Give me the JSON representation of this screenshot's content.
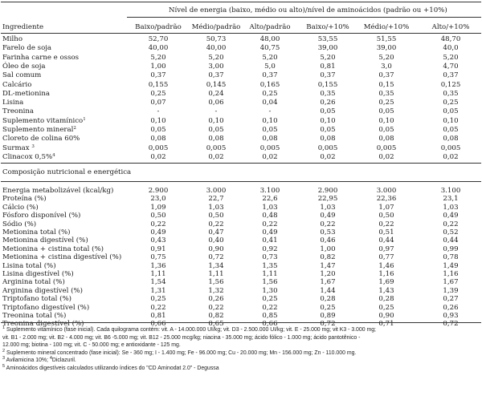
{
  "header": {
    "group_title": "Nível de energia (baixo, médio ou alto)/nível de aminoácidos (padrão ou +10%)",
    "first_col": "Ingrediente",
    "columns": [
      "Baixo/padrão",
      "Médio/padrão",
      "Alto/padrão",
      "Baixo/+10%",
      "Médio/+10%",
      "Alto/+10%"
    ]
  },
  "ingredients": [
    {
      "name": "Milho",
      "sup": "",
      "values": [
        "52,70",
        "50,73",
        "48,00",
        "53,55",
        "51,55",
        "48,70"
      ]
    },
    {
      "name": "Farelo de soja",
      "sup": "",
      "values": [
        "40,00",
        "40,00",
        "40,75",
        "39,00",
        "39,00",
        "40,0"
      ]
    },
    {
      "name": "Farinha carne e ossos",
      "sup": "",
      "values": [
        "5,20",
        "5,20",
        "5,20",
        "5,20",
        "5,20",
        "5,20"
      ]
    },
    {
      "name": "Óleo de soja",
      "sup": "",
      "values": [
        "1,00",
        "3,00",
        "5,0",
        "0,81",
        "3,0",
        "4,70"
      ]
    },
    {
      "name": "Sal comum",
      "sup": "",
      "values": [
        "0,37",
        "0,37",
        "0,37",
        "0,37",
        "0,37",
        "0,37"
      ]
    },
    {
      "name": "Calcário",
      "sup": "",
      "values": [
        "0,155",
        "0,145",
        "0,165",
        "0,155",
        "0,15",
        "0,125"
      ]
    },
    {
      "name": "DL-metionina",
      "sup": "",
      "values": [
        "0,25",
        "0,24",
        "0,25",
        "0,35",
        "0,35",
        "0,35"
      ]
    },
    {
      "name": "Lisina",
      "sup": "",
      "values": [
        "0,07",
        "0,06",
        "0,04",
        "0,26",
        "0,25",
        "0,25"
      ]
    },
    {
      "name": "Treonina",
      "sup": "",
      "values": [
        "-",
        "-",
        "-",
        "0,05",
        "0,05",
        "0,05"
      ]
    },
    {
      "name": "Suplemento vitamínico",
      "sup": "1",
      "values": [
        "0,10",
        "0,10",
        "0,10",
        "0,10",
        "0,10",
        "0,10"
      ]
    },
    {
      "name": "Suplemento mineral",
      "sup": "2",
      "values": [
        "0,05",
        "0,05",
        "0,05",
        "0,05",
        "0,05",
        "0,05"
      ]
    },
    {
      "name": "Cloreto de colina 60%",
      "sup": "",
      "values": [
        "0,08",
        "0,08",
        "0,08",
        "0,08",
        "0,08",
        "0,08"
      ]
    },
    {
      "name": "Surmax ",
      "sup": "3",
      "values": [
        "0,005",
        "0,005",
        "0,005",
        "0,005",
        "0,005",
        "0,005"
      ]
    },
    {
      "name": "Clinacox 0,5%",
      "sup": "4",
      "values": [
        "0,02",
        "0,02",
        "0,02",
        "0,02",
        "0,02",
        "0,02"
      ]
    }
  ],
  "composition_title": "Composição nutricional e energética",
  "composition": [
    {
      "name": "Energia metabolizável (kcal/kg)",
      "values": [
        "2.900",
        "3.000",
        "3.100",
        "2.900",
        "3.000",
        "3.100"
      ]
    },
    {
      "name": "Proteína (%)",
      "values": [
        "23,0",
        "22,7",
        "22,6",
        "22,95",
        "22,36",
        "23,1"
      ]
    },
    {
      "name": "Cálcio (%)",
      "values": [
        "1,09",
        "1,03",
        "1,03",
        "1,03",
        "1,07",
        "1,03"
      ]
    },
    {
      "name": "Fósforo disponível (%)",
      "values": [
        "0,50",
        "0,50",
        "0,48",
        "0,49",
        "0,50",
        "0,49"
      ]
    },
    {
      "name": "Sódio (%)",
      "values": [
        "0,22",
        "0,22",
        "0,22",
        "0,22",
        "0,22",
        "0,22"
      ]
    },
    {
      "name": "Metionina total (%)",
      "values": [
        "0,49",
        "0,47",
        "0,49",
        "0,53",
        "0,51",
        "0,52"
      ]
    },
    {
      "name": "Metionina digestível (%)",
      "values": [
        "0,43",
        "0,40",
        "0,41",
        "0,46",
        "0,44",
        "0,44"
      ]
    },
    {
      "name": "Metionina + cistina total (%)",
      "values": [
        "0,91",
        "0,90",
        "0,92",
        "1,00",
        "0,97",
        "0,99"
      ]
    },
    {
      "name": "Metionina + cistina digestível (%)",
      "values": [
        "0,75",
        "0,72",
        "0,73",
        "0,82",
        "0,77",
        "0,78"
      ]
    },
    {
      "name": "Lisina total (%)",
      "values": [
        "1,36",
        "1,34",
        "1,35",
        "1,47",
        "1,46",
        "1,49"
      ]
    },
    {
      "name": "Lisina digestível (%)",
      "values": [
        "1,11",
        "1,11",
        "1,11",
        "1,20",
        "1,16",
        "1,16"
      ]
    },
    {
      "name": "Arginina total (%)",
      "values": [
        "1,54",
        "1,56",
        "1,56",
        "1,67",
        "1,69",
        "1,67"
      ]
    },
    {
      "name": "Arginina digestível (%)",
      "values": [
        "1,31",
        "1,32",
        "1,30",
        "1,44",
        "1,43",
        "1,39"
      ]
    },
    {
      "name": "Triptofano total (%)",
      "values": [
        "0,25",
        "0,26",
        "0,25",
        "0,28",
        "0,28",
        "0,27"
      ]
    },
    {
      "name": "Triptofano digestível (%)",
      "values": [
        "0,22",
        "0,22",
        "0,22",
        "0,25",
        "0,25",
        "0,26"
      ]
    },
    {
      "name": "Treonina total (%)",
      "values": [
        "0,81",
        "0,82",
        "0,85",
        "0,89",
        "0,90",
        "0,93"
      ]
    },
    {
      "name": "Treonina digestível (%)",
      "values": [
        "0,66",
        "0,65",
        "0,66",
        "0,72",
        "0,71",
        "0,72"
      ]
    }
  ],
  "footnotes": [
    {
      "n": "1",
      "text": " Suplemento vitamínico (fase inicial). Cada quilograma contém: vit. A - 14.000.000 UI/kg; vit. D3 - 2.500.000 UI/kg; vit. E - 25.000 mg; vit K3 - 3.000 mg;"
    },
    {
      "n": "",
      "text": "   vit. B1 - 2.000 mg; vit. B2 - 4.000 mg; vit. B6 -5.000 mg; vit. B12 - 25.000 mcg/kg; niacina - 35.000 mg; ácido fólico - 1.000 mg; ácido pantotênico -"
    },
    {
      "n": "",
      "text": "   12.000 mg; biotina - 100 mg; vit. C - 50.000 mg; e antioxidante - 125 mg."
    },
    {
      "n": "2",
      "text": " Suplemento mineral concentrado (fase inicial): Se - 360 mg; I - 1.400 mg; Fe - 96.000 mg; Cu - 20.000 mg; Mn - 156.000 mg; Zn - 110.000 mg."
    },
    {
      "n": "3",
      "text": " Avilamicina 10%; "
    },
    {
      "n": "5",
      "text": " Aminoácidos digestíveis calculados utilizando  índices do \"CD Aminodat 2.0\" - Degussa"
    }
  ],
  "footnote_4": {
    "n": "4",
    "text": "Diclazuril."
  }
}
